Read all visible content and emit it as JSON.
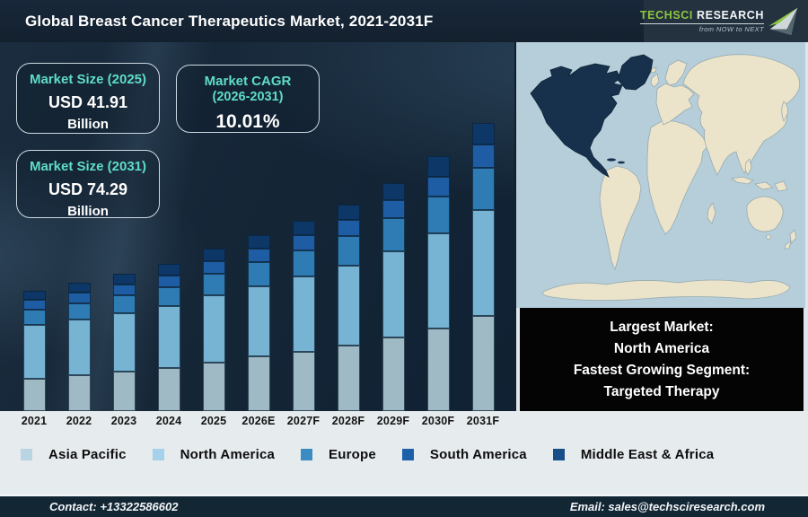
{
  "header": {
    "title": "Global Breast Cancer Therapeutics Market, 2021-2031F",
    "logo": {
      "brand_primary": "TechSci",
      "brand_secondary": "Research",
      "tagline": "from NOW to NEXT",
      "accent_color": "#8dc63f"
    }
  },
  "info_boxes": [
    {
      "title": "Market Size (2025)",
      "value": "USD 41.91",
      "unit": "Billion"
    },
    {
      "title": "Market CAGR",
      "subtitle": "(2026-2031)",
      "value": "10.01%"
    },
    {
      "title": "Market Size (2031)",
      "value": "USD 74.29",
      "unit": "Billion"
    }
  ],
  "chart_data": {
    "type": "bar",
    "stacked": true,
    "title": "Global Breast Cancer Therapeutics Market, 2021-2031F",
    "unit": "USD Billion",
    "categories": [
      "2021",
      "2022",
      "2023",
      "2024",
      "2025",
      "2026E",
      "2027F",
      "2028F",
      "2029F",
      "2030F",
      "2031F"
    ],
    "series": [
      {
        "name": "Asia Pacific",
        "color": "#9fbac4",
        "legend_color": "#b9d4e3",
        "values": [
          8.4,
          9.2,
          10.1,
          11.1,
          12.6,
          14.0,
          15.3,
          16.9,
          18.9,
          21.3,
          24.5
        ]
      },
      {
        "name": "North America",
        "color": "#77b3d3",
        "legend_color": "#a5d2ea",
        "values": [
          13.9,
          14.5,
          15.2,
          16.0,
          17.2,
          18.2,
          19.3,
          20.6,
          22.3,
          24.4,
          27.4
        ]
      },
      {
        "name": "Europe",
        "color": "#2f7cb5",
        "legend_color": "#3a8cc3",
        "values": [
          3.8,
          4.1,
          4.5,
          4.9,
          5.5,
          6.1,
          6.7,
          7.5,
          8.4,
          9.5,
          10.8
        ]
      },
      {
        "name": "South America",
        "color": "#1e5ca3",
        "legend_color": "#1d5fa8",
        "values": [
          2.5,
          2.7,
          2.8,
          3.0,
          3.4,
          3.6,
          3.9,
          4.2,
          4.7,
          5.2,
          5.9
        ]
      },
      {
        "name": "Middle East & Africa",
        "color": "#0c3766",
        "legend_color": "#164e87",
        "values": [
          2.4,
          2.5,
          2.7,
          2.9,
          3.2,
          3.5,
          3.7,
          4.1,
          4.5,
          5.2,
          5.7
        ]
      }
    ],
    "totals": [
      31.0,
      33.0,
      35.3,
      37.9,
      41.91,
      45.4,
      48.9,
      53.3,
      58.8,
      65.6,
      74.29
    ],
    "ylim": [
      0,
      95
    ],
    "grid": false,
    "value_axis_visible": false,
    "legend_position": "bottom"
  },
  "map": {
    "highlighted_region": "North America",
    "ocean_color": "#b5ced9",
    "land_color": "#ece4ca",
    "land_stroke": "#97aab1",
    "highlight_color": "#17314d"
  },
  "highlight_box": {
    "lines": [
      "Largest Market:",
      "North America",
      "Fastest Growing Segment:",
      "Targeted Therapy"
    ]
  },
  "footer": {
    "contact": "Contact: +13322586602",
    "email": "Email: sales@techsciresearch.com"
  }
}
